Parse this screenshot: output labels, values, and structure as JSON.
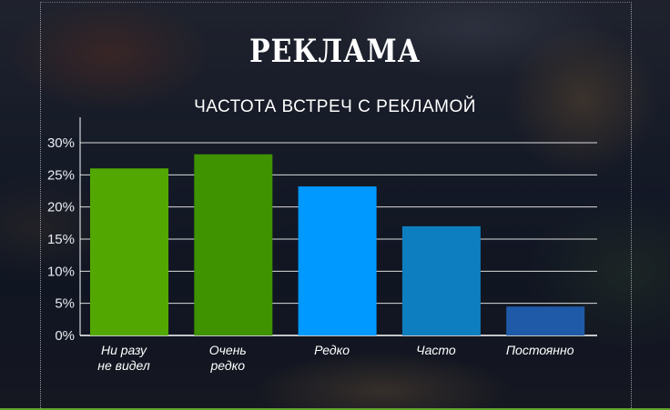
{
  "page": {
    "heading": "РЕКЛАМА"
  },
  "chart_data": {
    "type": "bar",
    "title": "ЧАСТОТА ВСТРЕЧ С РЕКЛАМОЙ",
    "xlabel": "",
    "ylabel": "",
    "categories": [
      [
        "Ни разу",
        "не видел"
      ],
      [
        "Очень",
        "редко"
      ],
      [
        "Редко"
      ],
      [
        "Часто"
      ],
      [
        "Постоянно"
      ]
    ],
    "values": [
      26,
      28.2,
      23.2,
      17,
      4.5
    ],
    "colors": [
      "#52a800",
      "#3f9200",
      "#0099ff",
      "#0d7fc0",
      "#1f5aa8"
    ],
    "ylim": [
      0,
      30
    ],
    "yticks": [
      "0%",
      "5%",
      "10%",
      "15%",
      "20%",
      "25%",
      "30%"
    ],
    "grid": true,
    "legend": "none"
  }
}
